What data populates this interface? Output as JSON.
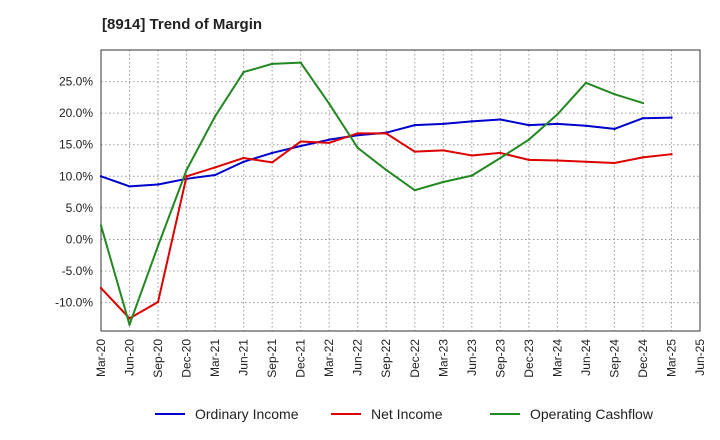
{
  "chart_data": {
    "type": "line",
    "title": "[8914]  Trend of Margin",
    "xlabel": "",
    "ylabel": "",
    "categories": [
      "Mar-20",
      "Jun-20",
      "Sep-20",
      "Dec-20",
      "Mar-21",
      "Jun-21",
      "Sep-21",
      "Dec-21",
      "Mar-22",
      "Jun-22",
      "Sep-22",
      "Dec-22",
      "Mar-23",
      "Jun-23",
      "Sep-23",
      "Dec-23",
      "Mar-24",
      "Jun-24",
      "Sep-24",
      "Dec-24",
      "Mar-25",
      "Jun-25"
    ],
    "ylim": [
      -14.5,
      30
    ],
    "yticks": [
      -10,
      -5,
      0,
      5,
      10,
      15,
      20,
      25
    ],
    "ytick_labels": [
      "-10.0%",
      "-5.0%",
      "0.0%",
      "5.0%",
      "10.0%",
      "15.0%",
      "20.0%",
      "25.0%"
    ],
    "grid": true,
    "legend_position": "bottom",
    "series": [
      {
        "name": "Ordinary Income",
        "color": "#0000cc",
        "values": [
          10.0,
          8.4,
          8.7,
          9.6,
          10.2,
          12.3,
          13.7,
          14.8,
          15.8,
          16.5,
          16.9,
          18.1,
          18.3,
          18.7,
          19.0,
          18.1,
          18.3,
          18.0,
          17.5,
          19.2,
          19.3,
          null
        ]
      },
      {
        "name": "Net Income",
        "color": "#dd0000",
        "values": [
          -7.7,
          -12.5,
          -9.9,
          10.0,
          11.4,
          12.9,
          12.2,
          15.5,
          15.3,
          16.8,
          16.8,
          13.9,
          14.1,
          13.3,
          13.7,
          12.6,
          12.5,
          12.3,
          12.1,
          13.0,
          13.5,
          null
        ]
      },
      {
        "name": "Operating Cashflow",
        "color": "#228822",
        "values": [
          2.2,
          -13.5,
          -1.0,
          11.0,
          19.5,
          26.5,
          27.8,
          28.0,
          21.5,
          14.5,
          11.0,
          7.8,
          9.1,
          10.1,
          12.9,
          15.8,
          19.8,
          24.8,
          23.0,
          21.6,
          null,
          null
        ]
      }
    ]
  }
}
